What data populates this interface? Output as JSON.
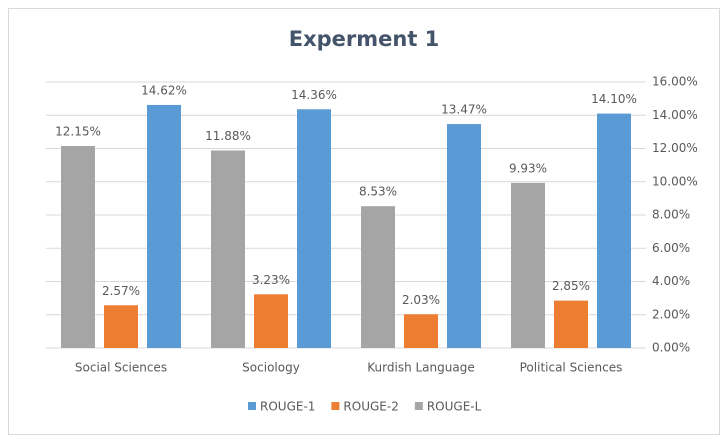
{
  "chart_data": {
    "type": "bar",
    "title": "Experment 1",
    "categories": [
      "Social Sciences",
      "Sociology",
      "Kurdish Language",
      "Political Sciences"
    ],
    "series": [
      {
        "name": "ROUGE-1",
        "color": "#5b9bd5",
        "values": [
          14.62,
          14.36,
          13.47,
          14.1
        ],
        "value_labels": [
          "14.62%",
          "14.36%",
          "13.47%",
          "14.10%"
        ]
      },
      {
        "name": "ROUGE-2",
        "color": "#ed7d31",
        "values": [
          2.57,
          3.23,
          2.03,
          2.85
        ],
        "value_labels": [
          "2.57%",
          "3.23%",
          "2.03%",
          "2.85%"
        ]
      },
      {
        "name": "ROUGE-L",
        "color": "#a5a5a5",
        "values": [
          12.15,
          11.88,
          8.53,
          9.93
        ],
        "value_labels": [
          "12.15%",
          "11.88%",
          "8.53%",
          "9.93%"
        ]
      }
    ],
    "ylim": [
      0,
      16
    ],
    "yticks": [
      {
        "value": 0,
        "label": "0.00%"
      },
      {
        "value": 2,
        "label": "2.00%"
      },
      {
        "value": 4,
        "label": "4.00%"
      },
      {
        "value": 6,
        "label": "6.00%"
      },
      {
        "value": 8,
        "label": "8.00%"
      },
      {
        "value": 10,
        "label": "10.00%"
      },
      {
        "value": 12,
        "label": "12.00%"
      },
      {
        "value": 14,
        "label": "14.00%"
      },
      {
        "value": 16,
        "label": "16.00%"
      }
    ],
    "grid": true,
    "legend": "bottom"
  }
}
